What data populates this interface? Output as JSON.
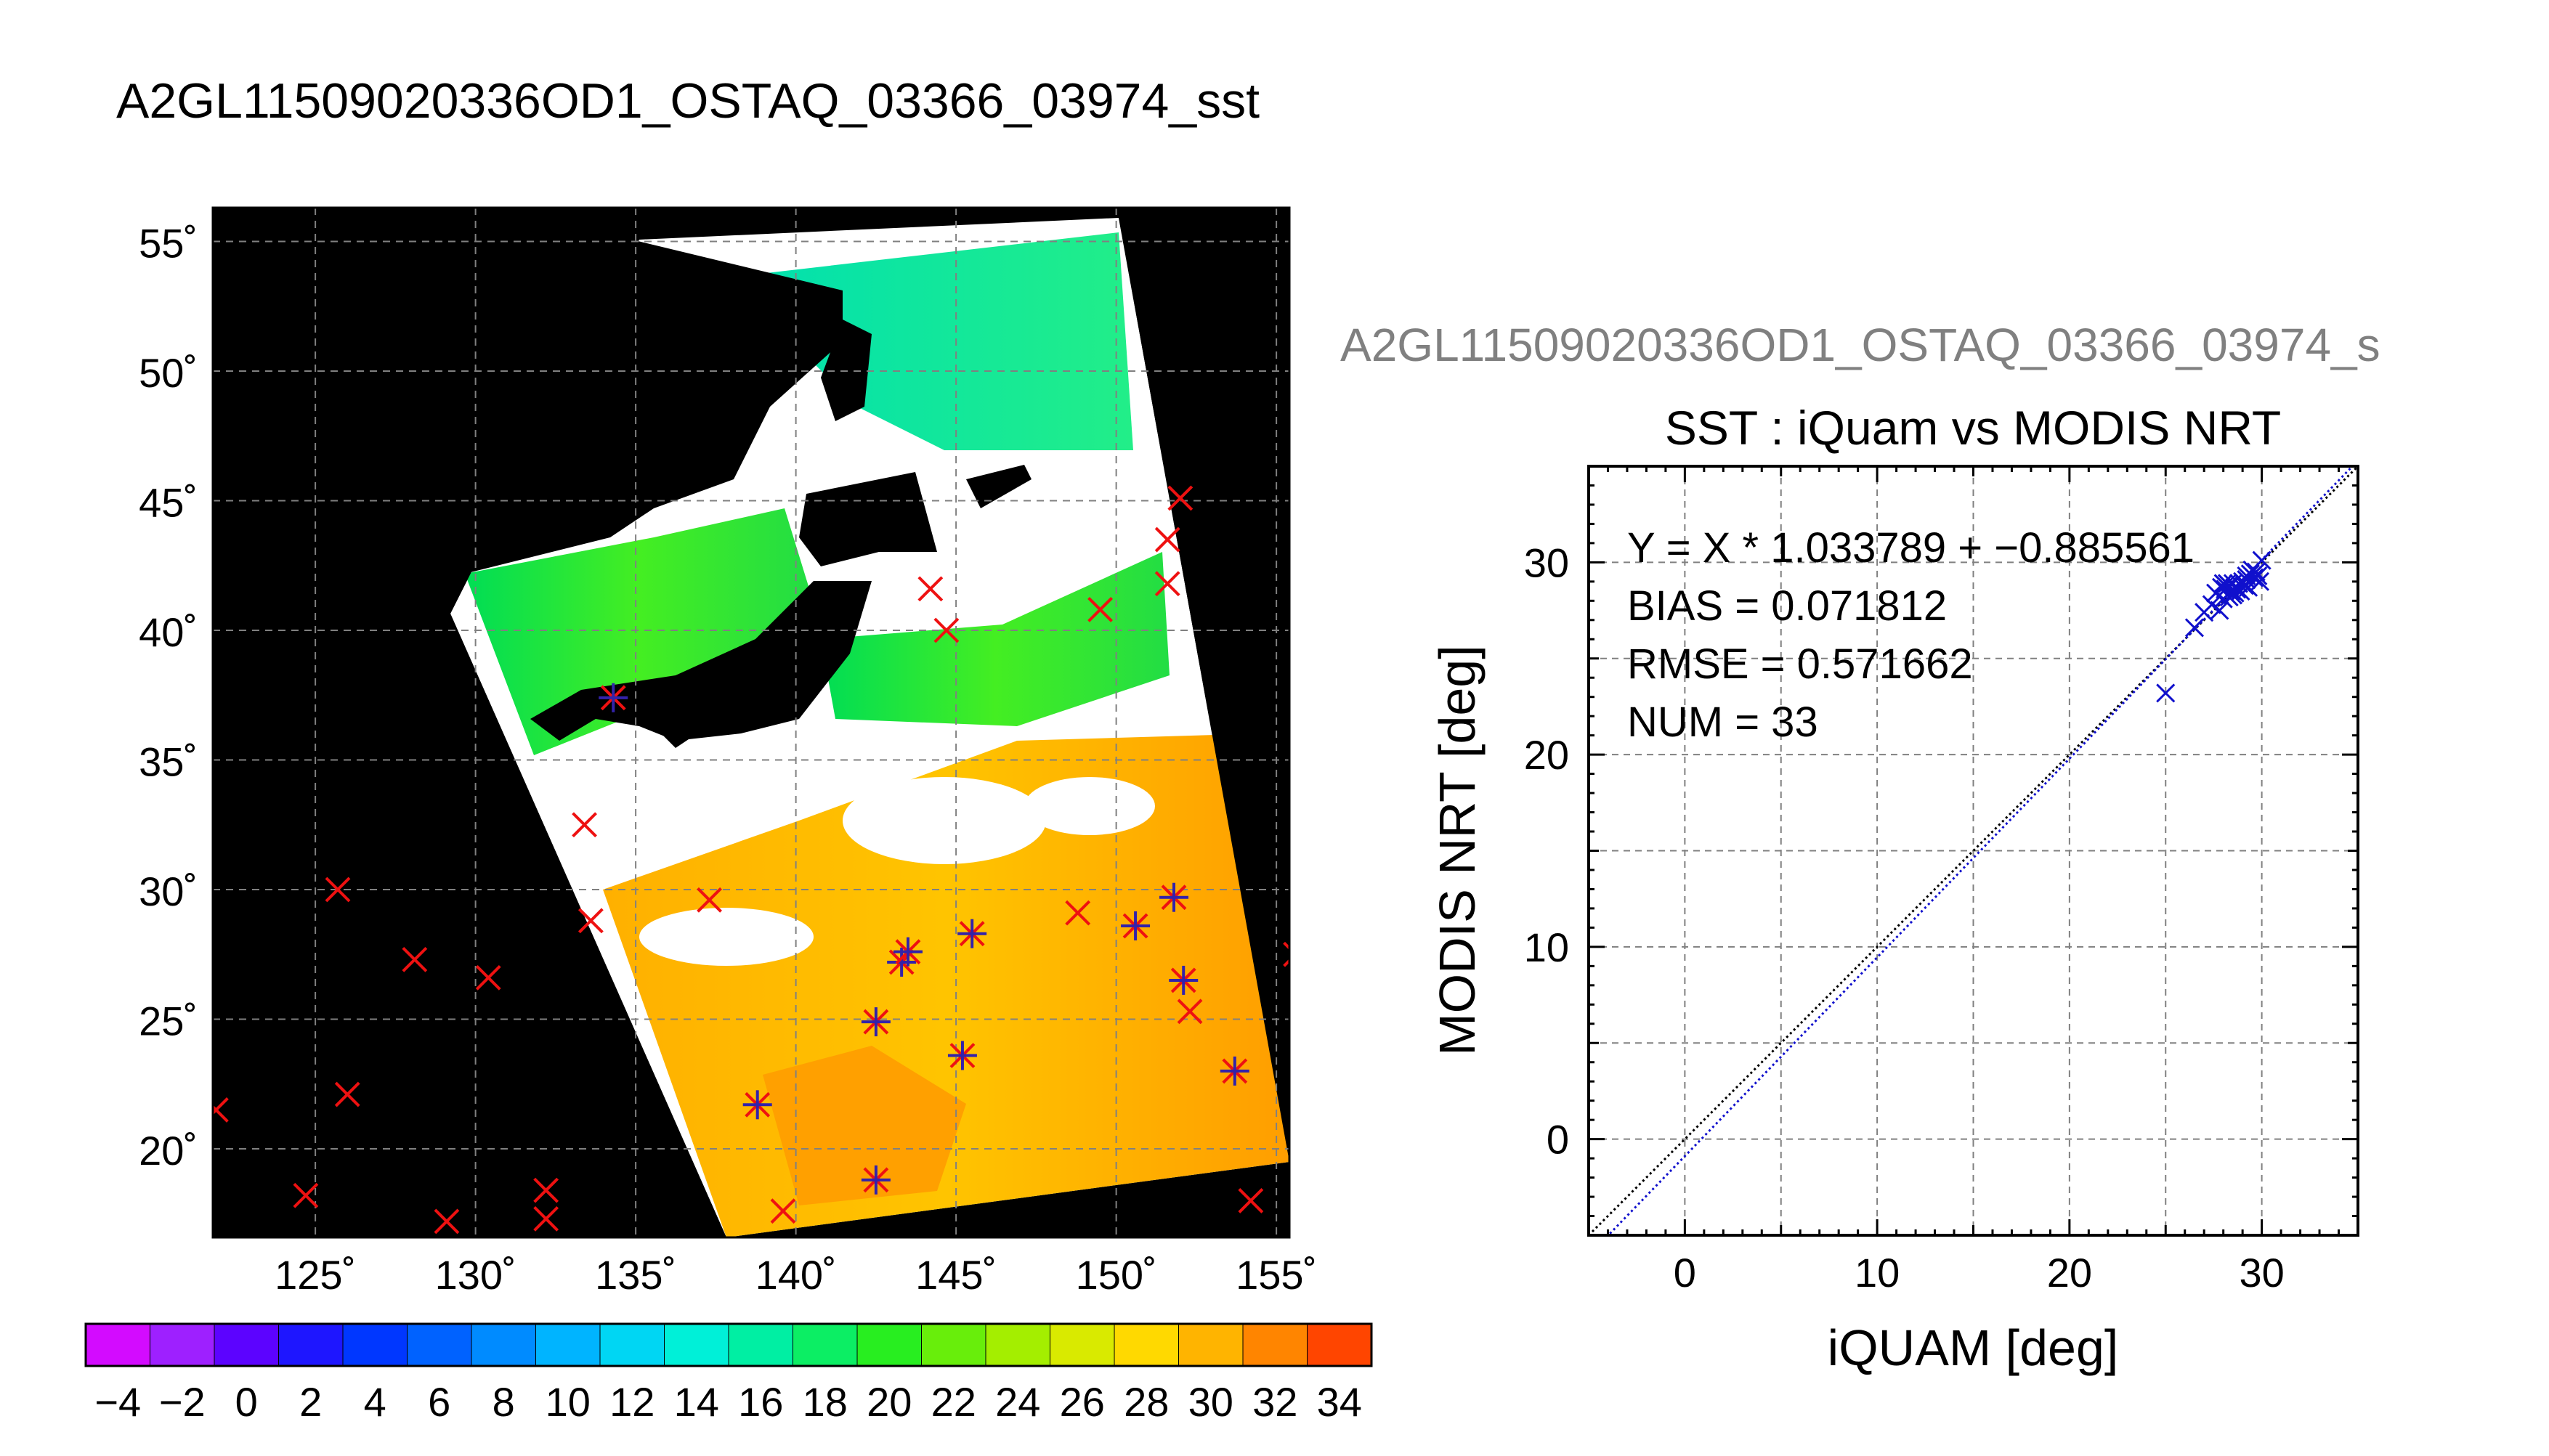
{
  "page_title": "A2GL11509020336OD1_OSTAQ_03366_03974_sst",
  "map": {
    "lat_ticks": [
      "55˚",
      "50˚",
      "45˚",
      "40˚",
      "35˚",
      "30˚",
      "25˚",
      "20˚"
    ],
    "lon_ticks": [
      "125˚",
      "130˚",
      "135˚",
      "140˚",
      "145˚",
      "150˚",
      "155˚"
    ],
    "colors": {
      "background": "#000000",
      "cloud": "#ffffff",
      "marker_outside": "#ee1111",
      "marker_inside": "#3322aa"
    }
  },
  "colorbar": {
    "ticks": [
      "−4",
      "−2",
      "0",
      "2",
      "4",
      "6",
      "8",
      "10",
      "12",
      "14",
      "16",
      "18",
      "20",
      "22",
      "24",
      "26",
      "28",
      "30",
      "32",
      "34"
    ],
    "range": [
      -5,
      35
    ]
  },
  "scatter_header": "A2GL11509020336OD1_OSTAQ_03366_03974_s",
  "chart_data": {
    "type": "scatter",
    "title": "SST : iQuam vs MODIS NRT",
    "xlabel": "iQUAM [deg]",
    "ylabel": "MODIS NRT [deg]",
    "xlim": [
      -5,
      35
    ],
    "ylim": [
      -5,
      35
    ],
    "x_ticks": [
      "0",
      "10",
      "20",
      "30"
    ],
    "y_ticks": [
      "0",
      "10",
      "20",
      "30"
    ],
    "grid": true,
    "stats": [
      "Y = X * 1.033789 + −0.885561",
      "BIAS = 0.071812",
      "RMSE = 0.571662",
      "NUM = 33"
    ],
    "fit": {
      "slope": 1.033789,
      "intercept": -0.885561
    },
    "series": [
      {
        "x": [
          25.0,
          26.5,
          27.0,
          27.4,
          27.6,
          27.8,
          27.9,
          28.0,
          28.1,
          28.2,
          28.3,
          28.3,
          28.4,
          28.5,
          28.5,
          28.6,
          28.7,
          28.8,
          28.9,
          29.0,
          29.1,
          29.2,
          29.3,
          29.4,
          29.5,
          29.6,
          29.7,
          29.8,
          29.9,
          28.0,
          28.6,
          29.2,
          30.0
        ],
        "y": [
          23.2,
          26.6,
          27.4,
          27.8,
          28.4,
          27.5,
          28.7,
          28.1,
          28.6,
          28.9,
          28.2,
          28.8,
          28.5,
          28.9,
          28.3,
          28.7,
          28.6,
          28.9,
          28.5,
          29.0,
          28.8,
          29.1,
          28.7,
          29.4,
          29.6,
          29.2,
          29.5,
          29.3,
          29.0,
          28.9,
          28.4,
          29.3,
          30.1
        ]
      }
    ],
    "colors": {
      "points": "#1010cc",
      "fit_line": "#1010cc",
      "identity_line": "#000000"
    }
  }
}
